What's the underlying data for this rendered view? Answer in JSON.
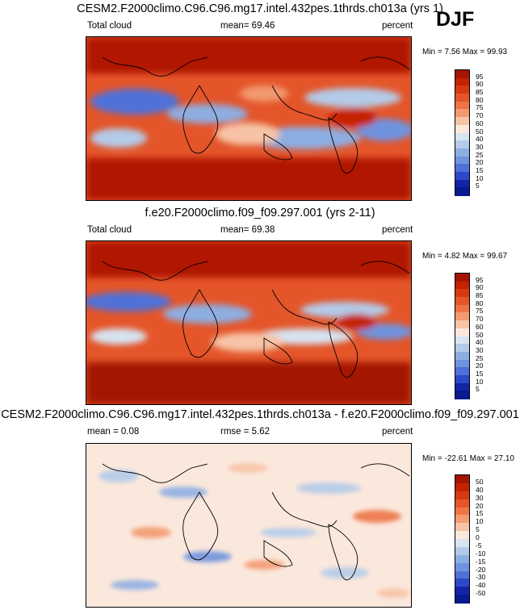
{
  "season": "DJF",
  "panels": [
    {
      "title": "CESM2.F2000climo.C96.C96.mg17.intel.432pes.1thrds.ch013a (yrs 1)",
      "left_label": "Total cloud",
      "center_label": "mean=  69.46",
      "right_label": "percent",
      "minmax": "Min =   7.56 Max =  99.93",
      "levels": [
        "95",
        "90",
        "85",
        "80",
        "75",
        "70",
        "60",
        "50",
        "40",
        "30",
        "25",
        "20",
        "15",
        "10",
        "5"
      ],
      "colors": [
        "#a31500",
        "#c52200",
        "#d63a10",
        "#e4552a",
        "#ee7446",
        "#f39a70",
        "#f7c3a6",
        "#fbe8dc",
        "#d7e4f2",
        "#b3cbe9",
        "#8daee2",
        "#6f93de",
        "#4f71d8",
        "#2d49c9",
        "#1424a8",
        "#081a8e"
      ]
    },
    {
      "title": "f.e20.F2000climo.f09_f09.297.001 (yrs 2-11)",
      "left_label": "Total cloud",
      "center_label": "mean=  69.38",
      "right_label": "percent",
      "minmax": "Min =   4.82 Max =  99.67",
      "levels": [
        "95",
        "90",
        "85",
        "80",
        "75",
        "70",
        "60",
        "50",
        "40",
        "30",
        "25",
        "20",
        "15",
        "10",
        "5"
      ],
      "colors": [
        "#a31500",
        "#c52200",
        "#d63a10",
        "#e4552a",
        "#ee7446",
        "#f39a70",
        "#f7c3a6",
        "#fbe8dc",
        "#d7e4f2",
        "#b3cbe9",
        "#8daee2",
        "#6f93de",
        "#4f71d8",
        "#2d49c9",
        "#1424a8",
        "#081a8e"
      ]
    },
    {
      "title": "CESM2.F2000climo.C96.C96.mg17.intel.432pes.1thrds.ch013a - f.e20.F2000climo.f09_f09.297.001",
      "left_label": "mean =   0.08",
      "center_label": "rmse =   5.62",
      "right_label": "percent",
      "minmax": "Min = -22.61 Max =  27.10",
      "levels": [
        "50",
        "40",
        "30",
        "20",
        "15",
        "10",
        "5",
        "0",
        "-5",
        "-10",
        "-15",
        "-20",
        "-30",
        "-40",
        "-50"
      ],
      "colors": [
        "#a31500",
        "#c52200",
        "#d63a10",
        "#e4552a",
        "#ee7446",
        "#f39a70",
        "#f7c3a6",
        "#fbe8dc",
        "#d7e4f2",
        "#b3cbe9",
        "#8daee2",
        "#6f93de",
        "#4f71d8",
        "#2d49c9",
        "#1424a8",
        "#081a8e"
      ]
    }
  ]
}
